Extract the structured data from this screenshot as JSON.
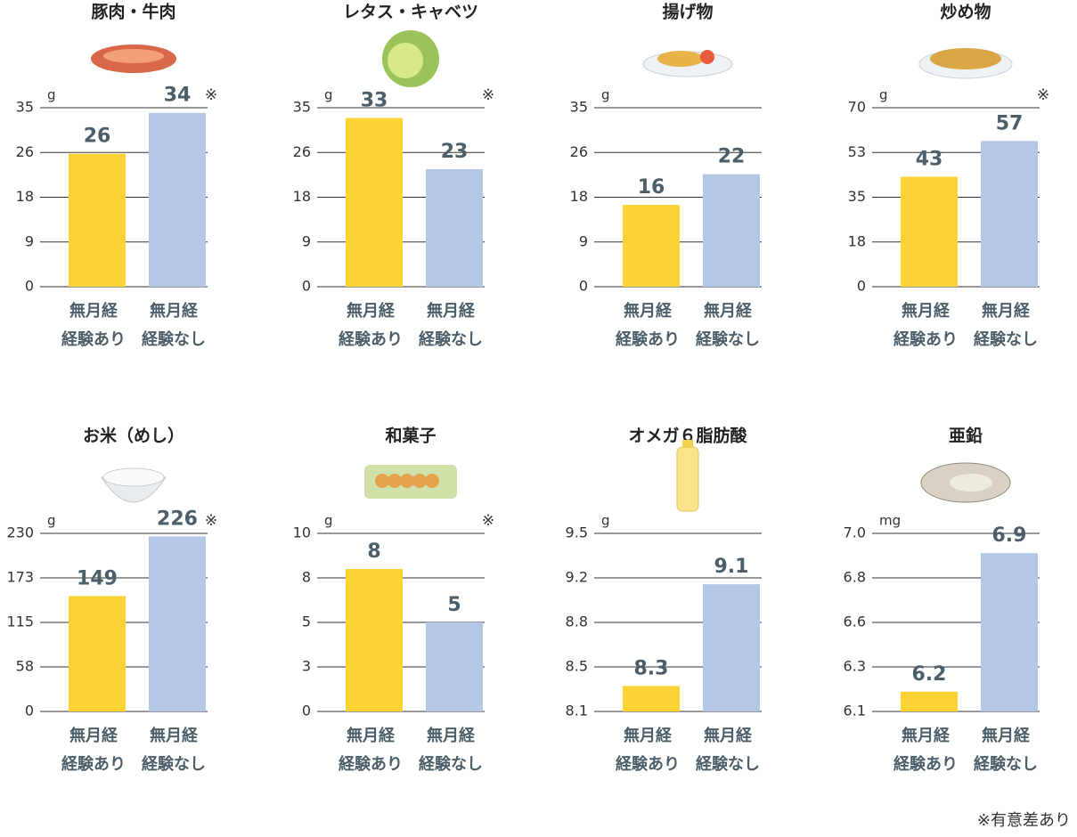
{
  "chart_data": [
    {
      "type": "bar",
      "title": "豚肉・牛肉",
      "unit": "g",
      "note": "※",
      "categories": [
        [
          "無月経",
          "経験あり"
        ],
        [
          "無月経",
          "経験なし"
        ]
      ],
      "values": [
        26,
        34
      ],
      "colors": [
        "#fcd335",
        "#b4c7e7"
      ],
      "ylim": [
        0,
        35
      ],
      "yticks": [
        0,
        {
          "value": 8.75,
          "label": "9"
        },
        {
          "value": 17.5,
          "label": "18"
        },
        {
          "value": 26.25,
          "label": "26"
        },
        35
      ],
      "grid": true
    },
    {
      "type": "bar",
      "title": "レタス・キャベツ",
      "unit": "g",
      "note": "※",
      "categories": [
        [
          "無月経",
          "経験あり"
        ],
        [
          "無月経",
          "経験なし"
        ]
      ],
      "values": [
        33,
        23
      ],
      "colors": [
        "#fcd335",
        "#b4c7e7"
      ],
      "ylim": [
        0,
        35
      ],
      "yticks": [
        0,
        {
          "value": 8.75,
          "label": "9"
        },
        {
          "value": 17.5,
          "label": "18"
        },
        {
          "value": 26.25,
          "label": "26"
        },
        35
      ],
      "grid": true
    },
    {
      "type": "bar",
      "title": "揚げ物",
      "unit": "g",
      "categories": [
        [
          "無月経",
          "経験あり"
        ],
        [
          "無月経",
          "経験なし"
        ]
      ],
      "values": [
        16,
        22
      ],
      "colors": [
        "#fcd335",
        "#b4c7e7"
      ],
      "ylim": [
        0,
        35
      ],
      "yticks": [
        0,
        {
          "value": 8.75,
          "label": "9"
        },
        {
          "value": 17.5,
          "label": "18"
        },
        {
          "value": 26.25,
          "label": "26"
        },
        35
      ],
      "grid": true
    },
    {
      "type": "bar",
      "title": "炒め物",
      "unit": "g",
      "note": "※",
      "categories": [
        [
          "無月経",
          "経験あり"
        ],
        [
          "無月経",
          "経験なし"
        ]
      ],
      "values": [
        43,
        57
      ],
      "colors": [
        "#fcd335",
        "#b4c7e7"
      ],
      "ylim": [
        0,
        70
      ],
      "yticks": [
        0,
        {
          "value": 17.5,
          "label": "18"
        },
        35,
        {
          "value": 52.5,
          "label": "53"
        },
        70
      ],
      "grid": true
    },
    {
      "type": "bar",
      "title": "お米（めし）",
      "unit": "g",
      "note": "※",
      "categories": [
        [
          "無月経",
          "経験あり"
        ],
        [
          "無月経",
          "経験なし"
        ]
      ],
      "values": [
        149,
        226
      ],
      "colors": [
        "#fcd335",
        "#b4c7e7"
      ],
      "ylim": [
        0,
        230
      ],
      "yticks": [
        0,
        {
          "value": 57.5,
          "label": "58"
        },
        115,
        {
          "value": 172.5,
          "label": "173"
        },
        230
      ],
      "grid": true
    },
    {
      "type": "bar",
      "title": "和菓子",
      "unit": "g",
      "note": "※",
      "categories": [
        [
          "無月経",
          "経験あり"
        ],
        [
          "無月経",
          "経験なし"
        ]
      ],
      "values": [
        8,
        5
      ],
      "colors": [
        "#fcd335",
        "#b4c7e7"
      ],
      "ylim": [
        0,
        10
      ],
      "yticks": [
        0,
        {
          "value": 2.5,
          "label": "3"
        },
        5,
        {
          "value": 7.5,
          "label": "8"
        },
        10
      ],
      "grid": true
    },
    {
      "type": "bar",
      "title": "オメガ６脂肪酸",
      "unit": "g",
      "categories": [
        [
          "無月経",
          "経験あり"
        ],
        [
          "無月経",
          "経験なし"
        ]
      ],
      "values": [
        8.3,
        9.1
      ],
      "colors": [
        "#fcd335",
        "#b4c7e7"
      ],
      "ylim": [
        8.1,
        9.5
      ],
      "yticks": [
        8.1,
        {
          "value": 8.45,
          "label": "8.5"
        },
        8.8,
        {
          "value": 9.15,
          "label": "9.2"
        },
        9.5
      ],
      "grid": true
    },
    {
      "type": "bar",
      "title": "亜鉛",
      "unit": "mg",
      "categories": [
        [
          "無月経",
          "経験あり"
        ],
        [
          "無月経",
          "経験なし"
        ]
      ],
      "values": [
        6.2,
        6.9
      ],
      "colors": [
        "#fcd335",
        "#b4c7e7"
      ],
      "ylim": [
        6.1,
        7.0
      ],
      "yticks": [
        6.1,
        {
          "value": 6.325,
          "label": "6.3"
        },
        {
          "value": 6.55,
          "label": "6.6"
        },
        {
          "value": 6.775,
          "label": "6.8"
        },
        {
          "value": 7.0,
          "label": "7.0"
        }
      ],
      "grid": true
    }
  ],
  "footnote": "※有意差あり"
}
